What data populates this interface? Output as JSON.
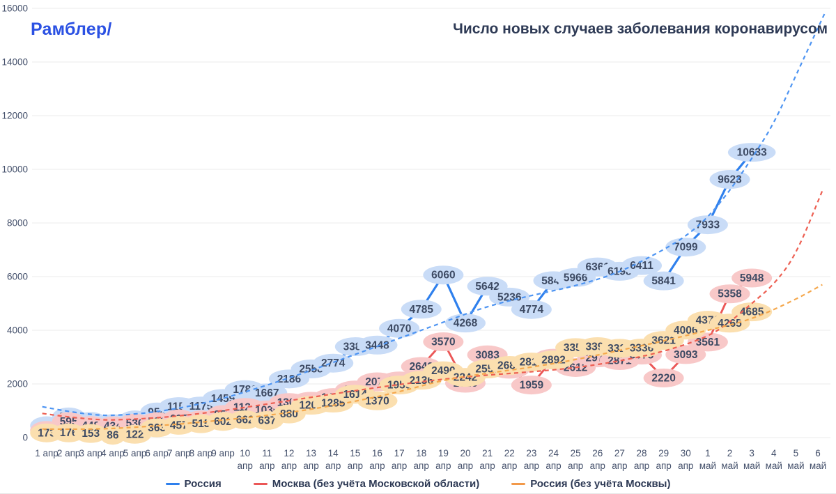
{
  "header": {
    "logo": "Рамблер/",
    "title": "Число новых случаев заболевания коронавирусом"
  },
  "colors": {
    "logo_blue": "#2b51e3",
    "title_text": "#2e3a55",
    "axis_text": "#44506b",
    "grid": "#ebebeb",
    "pill_text": "#3d4a63"
  },
  "legend": {
    "items": [
      {
        "label": "Россия",
        "color": "#2f80ed"
      },
      {
        "label": "Москва (без учёта Московской области)",
        "color": "#eb5757"
      },
      {
        "label": "Россия (без учёта Москвы)",
        "color": "#f2994a"
      }
    ]
  },
  "chart_data": {
    "type": "line",
    "title": "Число новых случаев заболевания коронавирусом",
    "xlabel": "",
    "ylabel": "",
    "ylim": [
      0,
      16000
    ],
    "grid": "horizontal",
    "legend_position": "bottom",
    "y_ticks": [
      0,
      2000,
      4000,
      6000,
      8000,
      10000,
      12000,
      14000,
      16000
    ],
    "x_labels": [
      "1 апр",
      "2 апр",
      "3 апр",
      "4 апр",
      "5 апр",
      "6 апр",
      "7 апр",
      "8 апр",
      "9 апр",
      "10 апр",
      "11 апр",
      "12 апр",
      "13 апр",
      "14 апр",
      "15 апр",
      "16 апр",
      "17 апр",
      "18 апр",
      "19 апр",
      "20 апр",
      "21 апр",
      "22 апр",
      "23 апр",
      "24 апр",
      "25 апр",
      "26 апр",
      "27 апр",
      "28 апр",
      "29 апр",
      "30 апр",
      "1 май",
      "2 май",
      "3 май",
      "4 май",
      "5 май",
      "6 май"
    ],
    "series": [
      {
        "name": "Россия",
        "line_color": "#2f80ed",
        "trend_color": "#4d94f2",
        "pill_color": "#c9dcf7",
        "values": [
          440,
          771,
          601,
          520,
          658,
          954,
          1154,
          1175,
          1459,
          1786,
          1667,
          2186,
          2558,
          2774,
          3388,
          3448,
          4070,
          4785,
          6060,
          4268,
          5642,
          5236,
          4774,
          5849,
          5966,
          6361,
          6198,
          6411,
          5841,
          7099,
          7933,
          9623,
          10633
        ],
        "trend": [
          [
            -0.2,
            1150
          ],
          [
            2,
            800
          ],
          [
            4,
            860
          ],
          [
            6,
            1080
          ],
          [
            8,
            1450
          ],
          [
            10,
            1950
          ],
          [
            12,
            2500
          ],
          [
            14,
            3100
          ],
          [
            16,
            3700
          ],
          [
            18,
            4300
          ],
          [
            20,
            4900
          ],
          [
            22,
            5300
          ],
          [
            24,
            5650
          ],
          [
            26,
            6150
          ],
          [
            28,
            7000
          ],
          [
            29,
            7500
          ],
          [
            30,
            8200
          ],
          [
            31,
            9200
          ],
          [
            32,
            10400
          ],
          [
            33,
            11700
          ],
          [
            34,
            13500
          ],
          [
            35.3,
            15800
          ]
        ]
      },
      {
        "name": "Москва (без учёта Московской области)",
        "line_color": "#eb5757",
        "trend_color": "#ed5f52",
        "pill_color": "#f8c8c8",
        "values": [
          267,
          595,
          448,
          434,
          536,
          591,
          697,
          660,
          857,
          1124,
          1030,
          1306,
          1355,
          1489,
          1774,
          2078,
          2111,
          2649,
          3570,
          2026,
          3083,
          2548,
          1959,
          2957,
          2612,
          2971,
          2871,
          3075,
          2220,
          3093,
          3561,
          5358,
          5948
        ],
        "trend": [
          [
            -0.2,
            900
          ],
          [
            2,
            640
          ],
          [
            4,
            680
          ],
          [
            6,
            800
          ],
          [
            8,
            1000
          ],
          [
            10,
            1250
          ],
          [
            12,
            1500
          ],
          [
            14,
            1750
          ],
          [
            16,
            1980
          ],
          [
            18,
            2180
          ],
          [
            20,
            2330
          ],
          [
            22,
            2450
          ],
          [
            24,
            2600
          ],
          [
            26,
            2850
          ],
          [
            28,
            3200
          ],
          [
            30,
            3750
          ],
          [
            31,
            4300
          ],
          [
            32,
            5000
          ],
          [
            33,
            5700
          ],
          [
            34,
            6800
          ],
          [
            35.2,
            9200
          ]
        ]
      },
      {
        "name": "Россия (без учёта Москвы)",
        "line_color": "#f2994a",
        "trend_color": "#f5a84d",
        "pill_color": "#fbdfaf",
        "values": [
          173,
          176,
          153,
          86,
          122,
          363,
          457,
          515,
          602,
          662,
          637,
          880,
          1203,
          1285,
          1614,
          1370,
          1959,
          2136,
          2490,
          2242,
          2559,
          2688,
          2815,
          2892,
          3354,
          3390,
          3327,
          3336,
          3621,
          4006,
          4372,
          4265,
          4685
        ],
        "trend": [
          [
            -0.2,
            320
          ],
          [
            2,
            300
          ],
          [
            4,
            380
          ],
          [
            6,
            500
          ],
          [
            8,
            650
          ],
          [
            10,
            820
          ],
          [
            12,
            1050
          ],
          [
            14,
            1350
          ],
          [
            16,
            1700
          ],
          [
            18,
            2150
          ],
          [
            20,
            2400
          ],
          [
            22,
            2620
          ],
          [
            24,
            2900
          ],
          [
            26,
            3250
          ],
          [
            28,
            3600
          ],
          [
            30,
            4000
          ],
          [
            32,
            4400
          ],
          [
            34,
            5150
          ],
          [
            35.2,
            5700
          ]
        ]
      }
    ]
  }
}
